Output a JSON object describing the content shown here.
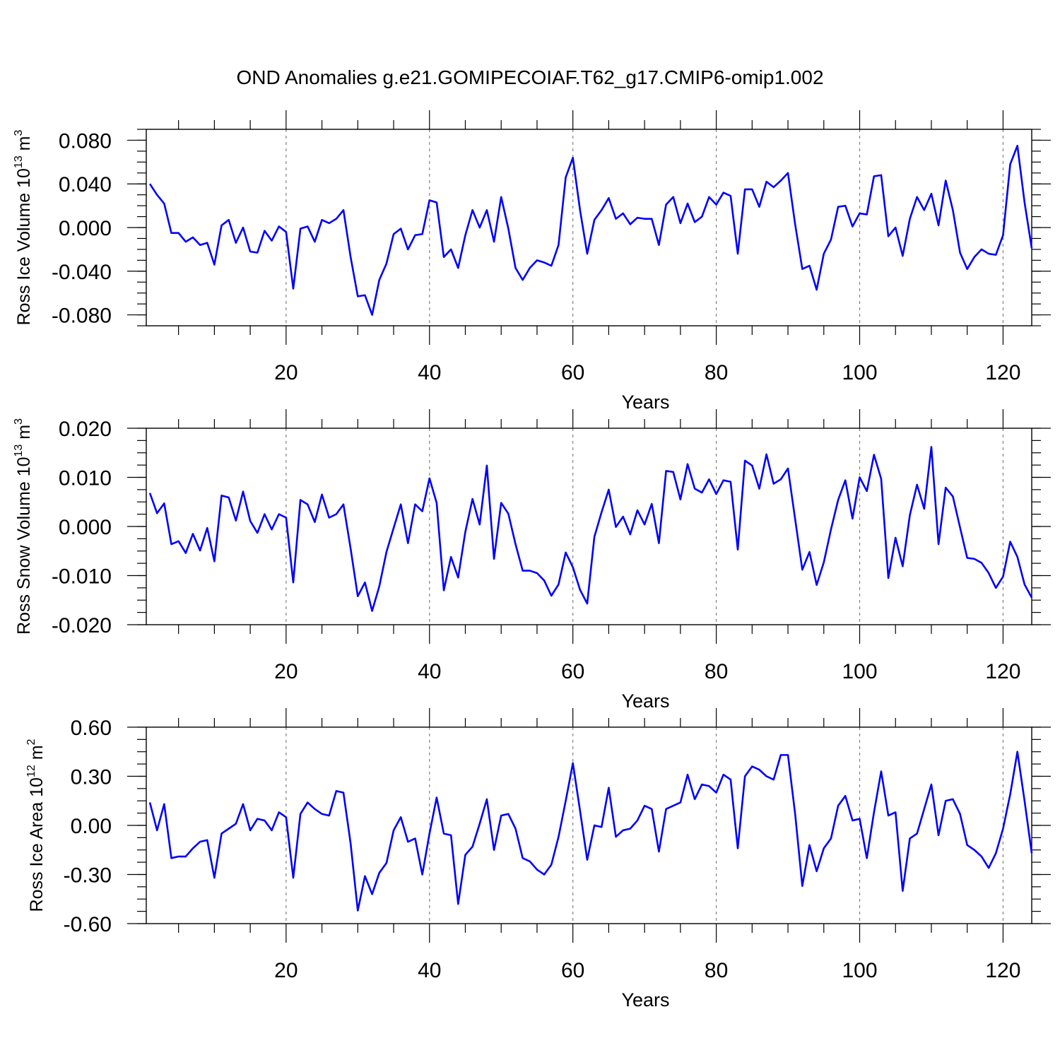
{
  "title": "OND Anomalies g.e21.GOMIPECOIAF.T62_g17.CMIP6-omip1.002",
  "colors": {
    "line": "#0000ff",
    "grid": "#808080",
    "axis": "#000000"
  },
  "chart_data": [
    {
      "type": "line",
      "id": "ice-volume",
      "title": "OND Anomalies g.e21.GOMIPECOIAF.T62_g17.CMIP6-omip1.002",
      "xlabel": "Years",
      "ylabel_text": "Ross Ice Volume 10",
      "ylabel_sup": "13",
      "ylabel_unit": "m",
      "ylabel_unit_sup": "3",
      "xlim": [
        0.5,
        124
      ],
      "ylim": [
        -0.09,
        0.09
      ],
      "xticks": [
        20,
        40,
        60,
        80,
        100,
        120
      ],
      "yticks": [
        -0.08,
        -0.04,
        0.0,
        0.04,
        0.08
      ],
      "ytick_labels": [
        "-0.080",
        "-0.040",
        "0.000",
        "0.040",
        "0.080"
      ],
      "x_start": 1,
      "values": [
        0.04,
        0.03,
        0.022,
        -0.005,
        -0.005,
        -0.013,
        -0.009,
        -0.016,
        -0.014,
        -0.034,
        0.002,
        0.007,
        -0.014,
        0.0,
        -0.022,
        -0.023,
        -0.003,
        -0.012,
        0.001,
        -0.004,
        -0.056,
        -0.001,
        0.001,
        -0.013,
        0.007,
        0.004,
        0.008,
        0.016,
        -0.027,
        -0.063,
        -0.062,
        -0.08,
        -0.048,
        -0.033,
        -0.006,
        -0.001,
        -0.02,
        -0.007,
        -0.006,
        0.025,
        0.023,
        -0.027,
        -0.02,
        -0.037,
        -0.007,
        0.016,
        0.0,
        0.016,
        -0.013,
        0.028,
        -0.001,
        -0.037,
        -0.048,
        -0.037,
        -0.03,
        -0.032,
        -0.035,
        -0.016,
        0.046,
        0.064,
        0.016,
        -0.024,
        0.007,
        0.016,
        0.027,
        0.008,
        0.013,
        0.003,
        0.009,
        0.008,
        0.008,
        -0.016,
        0.021,
        0.028,
        0.004,
        0.022,
        0.005,
        0.01,
        0.028,
        0.021,
        0.032,
        0.029,
        -0.024,
        0.035,
        0.035,
        0.019,
        0.042,
        0.037,
        0.043,
        0.05,
        0.003,
        -0.038,
        -0.035,
        -0.057,
        -0.024,
        -0.011,
        0.019,
        0.02,
        0.001,
        0.013,
        0.012,
        0.047,
        0.048,
        -0.008,
        0.0,
        -0.026,
        0.008,
        0.028,
        0.016,
        0.031,
        0.002,
        0.043,
        0.016,
        -0.023,
        -0.038,
        -0.027,
        -0.02,
        -0.024,
        -0.025,
        -0.007,
        0.058,
        0.075,
        0.023,
        -0.019
      ]
    },
    {
      "type": "line",
      "id": "snow-volume",
      "xlabel": "Years",
      "ylabel_text": "Ross Snow Volume 10",
      "ylabel_sup": "13",
      "ylabel_unit": "m",
      "ylabel_unit_sup": "3",
      "xlim": [
        0.5,
        124
      ],
      "ylim": [
        -0.02,
        0.02
      ],
      "xticks": [
        20,
        40,
        60,
        80,
        100,
        120
      ],
      "yticks": [
        -0.02,
        -0.01,
        0.0,
        0.01,
        0.02
      ],
      "ytick_labels": [
        "-0.020",
        "-0.010",
        "0.000",
        "0.010",
        "0.020"
      ],
      "x_start": 1,
      "values": [
        0.0068,
        0.0027,
        0.0047,
        -0.0036,
        -0.003,
        -0.0054,
        -0.0015,
        -0.0049,
        -0.0003,
        -0.0071,
        0.0063,
        0.0059,
        0.0012,
        0.0071,
        0.0011,
        -0.0013,
        0.0025,
        -0.0006,
        0.0025,
        0.0018,
        -0.0114,
        0.0054,
        0.0045,
        0.0009,
        0.0065,
        0.0018,
        0.0025,
        0.0045,
        -0.0045,
        -0.0142,
        -0.0114,
        -0.0172,
        -0.0122,
        -0.0052,
        -0.0003,
        0.0045,
        -0.0034,
        0.0045,
        0.0031,
        0.0098,
        0.0048,
        -0.013,
        -0.0062,
        -0.0104,
        -0.0011,
        0.0056,
        0.0004,
        0.0124,
        -0.0066,
        0.0048,
        0.0026,
        -0.0036,
        -0.009,
        -0.009,
        -0.0095,
        -0.011,
        -0.0141,
        -0.0118,
        -0.0053,
        -0.0083,
        -0.0129,
        -0.0157,
        -0.0021,
        0.0029,
        0.0075,
        -0.0001,
        0.002,
        -0.0016,
        0.0033,
        0.0004,
        0.0046,
        -0.0034,
        0.0113,
        0.0111,
        0.0055,
        0.0127,
        0.0077,
        0.0069,
        0.0096,
        0.0066,
        0.0094,
        0.0091,
        -0.0047,
        0.0134,
        0.0124,
        0.0077,
        0.0147,
        0.0087,
        0.0096,
        0.0118,
        0.0015,
        -0.0088,
        -0.0052,
        -0.0119,
        -0.0073,
        -0.0006,
        0.0054,
        0.0094,
        0.0016,
        0.01,
        0.0072,
        0.0146,
        0.0097,
        -0.0105,
        -0.0023,
        -0.0081,
        0.0023,
        0.0085,
        0.0036,
        0.0162,
        -0.0036,
        0.0079,
        0.0061,
        -0.0002,
        -0.0064,
        -0.0066,
        -0.0074,
        -0.0095,
        -0.0125,
        -0.0102,
        -0.0031,
        -0.0062,
        -0.0118,
        -0.0145
      ]
    },
    {
      "type": "line",
      "id": "ice-area",
      "xlabel": "Years",
      "ylabel_text": "Ross Ice Area 10",
      "ylabel_sup": "12",
      "ylabel_unit": "m",
      "ylabel_unit_sup": "2",
      "xlim": [
        0.5,
        124
      ],
      "ylim": [
        -0.6,
        0.6
      ],
      "xticks": [
        20,
        40,
        60,
        80,
        100,
        120
      ],
      "yticks": [
        -0.6,
        -0.3,
        0.0,
        0.3,
        0.6
      ],
      "ytick_labels": [
        "-0.60",
        "-0.30",
        "0.00",
        "0.30",
        "0.60"
      ],
      "x_start": 1,
      "values": [
        0.14,
        -0.03,
        0.13,
        -0.2,
        -0.19,
        -0.19,
        -0.14,
        -0.1,
        -0.09,
        -0.32,
        -0.05,
        -0.02,
        0.01,
        0.13,
        -0.03,
        0.04,
        0.03,
        -0.03,
        0.08,
        0.05,
        -0.32,
        0.07,
        0.14,
        0.1,
        0.07,
        0.06,
        0.21,
        0.2,
        -0.11,
        -0.52,
        -0.31,
        -0.42,
        -0.29,
        -0.23,
        -0.03,
        0.05,
        -0.1,
        -0.08,
        -0.3,
        -0.05,
        0.17,
        -0.05,
        -0.06,
        -0.48,
        -0.18,
        -0.13,
        0.01,
        0.16,
        -0.15,
        0.06,
        0.07,
        -0.02,
        -0.2,
        -0.22,
        -0.27,
        -0.3,
        -0.24,
        -0.07,
        0.15,
        0.38,
        0.09,
        -0.21,
        0.0,
        -0.01,
        0.23,
        -0.07,
        -0.03,
        -0.02,
        0.03,
        0.12,
        0.1,
        -0.16,
        0.1,
        0.12,
        0.14,
        0.31,
        0.16,
        0.25,
        0.24,
        0.2,
        0.31,
        0.28,
        -0.14,
        0.3,
        0.36,
        0.34,
        0.3,
        0.28,
        0.43,
        0.43,
        0.07,
        -0.37,
        -0.12,
        -0.28,
        -0.14,
        -0.08,
        0.12,
        0.18,
        0.03,
        0.04,
        -0.2,
        0.08,
        0.33,
        0.06,
        0.08,
        -0.4,
        -0.08,
        -0.05,
        0.1,
        0.25,
        -0.06,
        0.15,
        0.16,
        0.07,
        -0.12,
        -0.15,
        -0.19,
        -0.26,
        -0.17,
        -0.02,
        0.19,
        0.45,
        0.15,
        -0.17
      ]
    }
  ]
}
